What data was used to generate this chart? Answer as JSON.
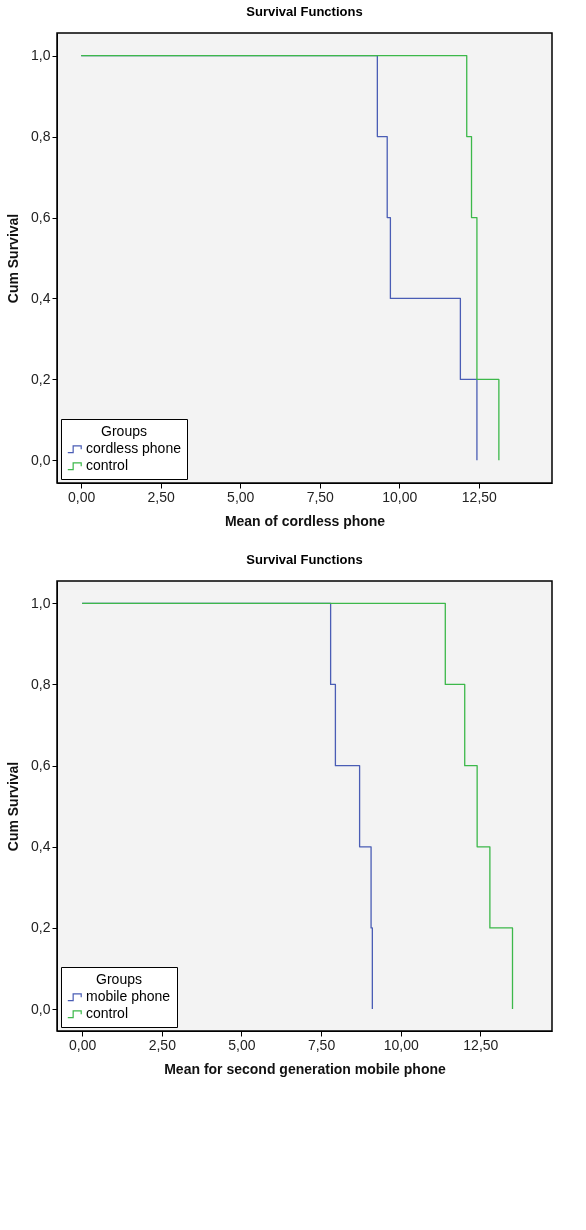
{
  "chart_data": [
    {
      "type": "step",
      "title": "Survival Functions",
      "xlabel": "Mean of cordless phone",
      "ylabel": "Cum Survival",
      "legend_title": "Groups",
      "legend": "bottom left",
      "series": [
        {
          "name": "cordless phone",
          "color": "#4a5db5",
          "x": [
            0,
            9.31,
            9.62,
            9.72,
            11.92,
            12.44
          ],
          "values": [
            1.0,
            0.8,
            0.6,
            0.4,
            0.2,
            0.0
          ]
        },
        {
          "name": "control",
          "color": "#3cb84a",
          "x": [
            0,
            12.12,
            12.27,
            12.44,
            13.13
          ],
          "values": [
            1.0,
            0.8,
            0.6,
            0.2,
            0.0
          ]
        }
      ],
      "xlim": [
        -0.76,
        14.8
      ],
      "ylim": [
        -0.056,
        1.056
      ],
      "xticks": [
        {
          "value": 0,
          "label": "0,00"
        },
        {
          "value": 2.5,
          "label": "2,50"
        },
        {
          "value": 5,
          "label": "5,00"
        },
        {
          "value": 7.5,
          "label": "7,50"
        },
        {
          "value": 10,
          "label": "10,00"
        },
        {
          "value": 12.5,
          "label": "12,50"
        }
      ],
      "yticks": [
        {
          "value": 0,
          "label": "0,0"
        },
        {
          "value": 0.2,
          "label": "0,2"
        },
        {
          "value": 0.4,
          "label": "0,4"
        },
        {
          "value": 0.6,
          "label": "0,6"
        },
        {
          "value": 0.8,
          "label": "0,8"
        },
        {
          "value": 1,
          "label": "1,0"
        }
      ],
      "grid": false,
      "marker": "none",
      "line_style": "solid"
    },
    {
      "type": "step",
      "title": "Survival Functions",
      "xlabel": "Mean for second generation mobile phone",
      "ylabel": "Cum Survival",
      "legend_title": "Groups",
      "legend": "bottom left",
      "series": [
        {
          "name": "mobile phone",
          "color": "#4a5db5",
          "x": [
            0,
            7.8,
            7.95,
            8.71,
            9.07,
            9.11
          ],
          "values": [
            1.0,
            0.8,
            0.6,
            0.4,
            0.2,
            0.0
          ]
        },
        {
          "name": "control",
          "color": "#3cb84a",
          "x": [
            0,
            11.4,
            12.01,
            12.4,
            12.8,
            13.51
          ],
          "values": [
            1.0,
            0.8,
            0.6,
            0.4,
            0.2,
            0.0
          ]
        }
      ],
      "xlim": [
        -0.79,
        14.75
      ],
      "ylim": [
        -0.054,
        1.055
      ],
      "xticks": [
        {
          "value": 0,
          "label": "0,00"
        },
        {
          "value": 2.5,
          "label": "2,50"
        },
        {
          "value": 5,
          "label": "5,00"
        },
        {
          "value": 7.5,
          "label": "7,50"
        },
        {
          "value": 10,
          "label": "10,00"
        },
        {
          "value": 12.5,
          "label": "12,50"
        }
      ],
      "yticks": [
        {
          "value": 0,
          "label": "0,0"
        },
        {
          "value": 0.2,
          "label": "0,2"
        },
        {
          "value": 0.4,
          "label": "0,4"
        },
        {
          "value": 0.6,
          "label": "0,6"
        },
        {
          "value": 0.8,
          "label": "0,8"
        },
        {
          "value": 1,
          "label": "1,0"
        }
      ],
      "grid": false,
      "marker": "none",
      "line_style": "solid"
    }
  ]
}
